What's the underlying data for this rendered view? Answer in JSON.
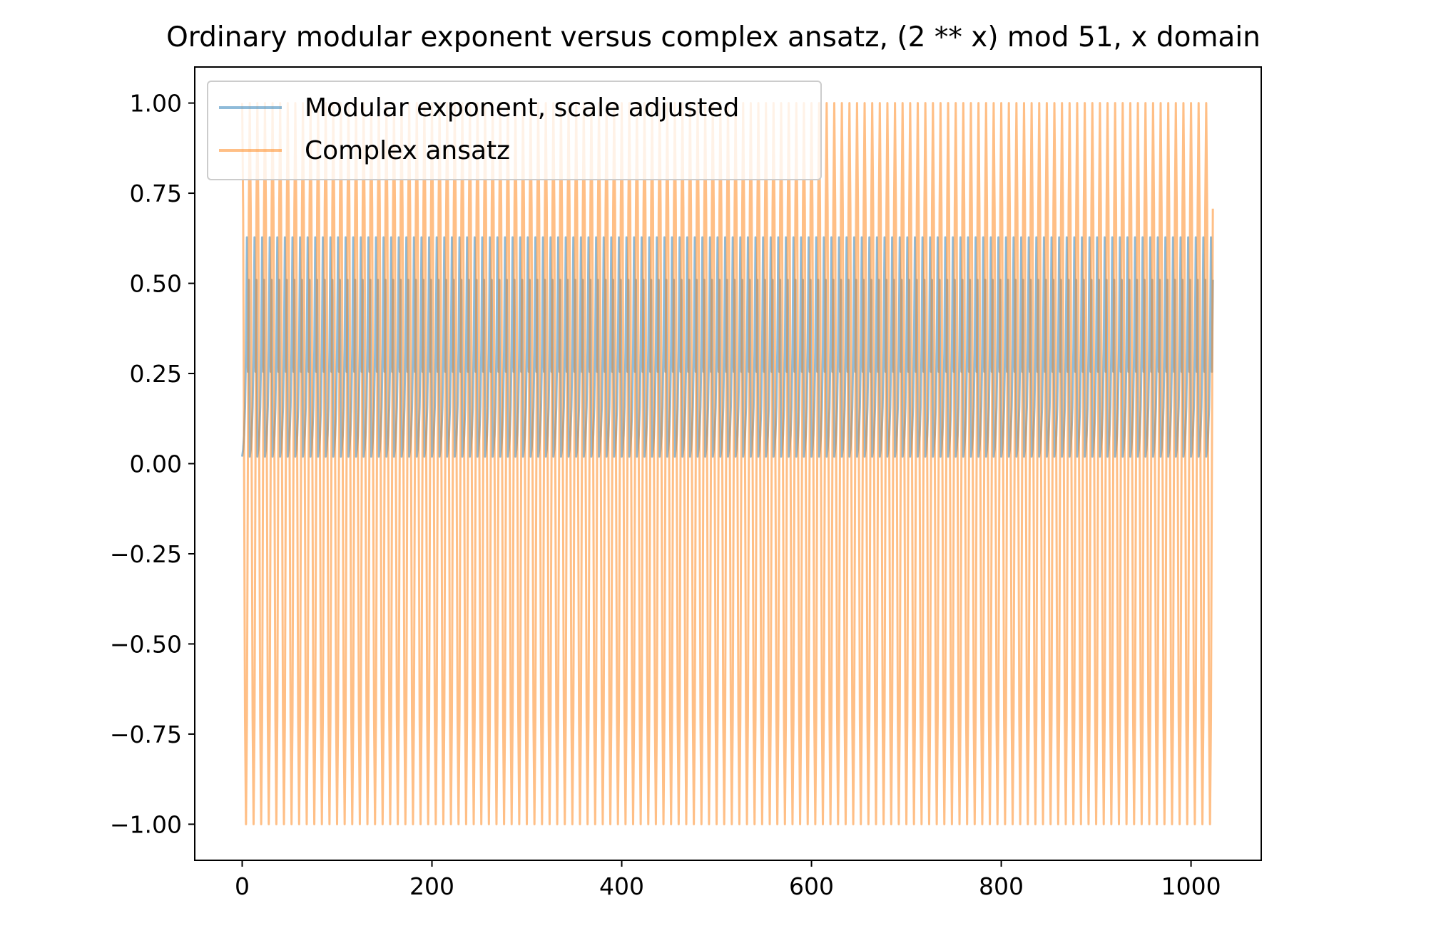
{
  "chart_data": {
    "type": "line",
    "title": "Ordinary modular exponent versus complex ansatz, (2 ** x) mod 51, x domain",
    "xlabel": "",
    "ylabel": "",
    "xlim": [
      -50,
      1074
    ],
    "ylim": [
      -1.1,
      1.1
    ],
    "x_ticks": [
      0,
      200,
      400,
      600,
      800,
      1000
    ],
    "x_tick_labels": [
      "0",
      "200",
      "400",
      "600",
      "800",
      "1000"
    ],
    "y_ticks": [
      1.0,
      0.75,
      0.5,
      0.25,
      0.0,
      -0.25,
      -0.5,
      -0.75,
      -1.0
    ],
    "y_tick_labels": [
      "1.00",
      "0.75",
      "0.50",
      "0.25",
      "0.00",
      "−0.25",
      "−0.50",
      "−0.75",
      "−1.00"
    ],
    "grid": false,
    "legend_position": "top-left",
    "series": [
      {
        "name": "Modular exponent, scale adjusted",
        "color": "#1f77b4",
        "opacity": 0.5,
        "x_range": [
          0,
          1023
        ],
        "period": 8,
        "cycle_values": [
          0.0196,
          0.0392,
          0.0784,
          0.1569,
          0.3137,
          0.6275,
          0.2549,
          0.5098
        ]
      },
      {
        "name": "Complex ansatz",
        "color": "#ff7f0e",
        "opacity": 0.5,
        "x_range": [
          0,
          1023
        ],
        "period": 8,
        "cycle_values": [
          1.0,
          0.7071,
          0.0,
          -0.7071,
          -1.0,
          -0.7071,
          0.0,
          0.7071
        ]
      }
    ]
  }
}
